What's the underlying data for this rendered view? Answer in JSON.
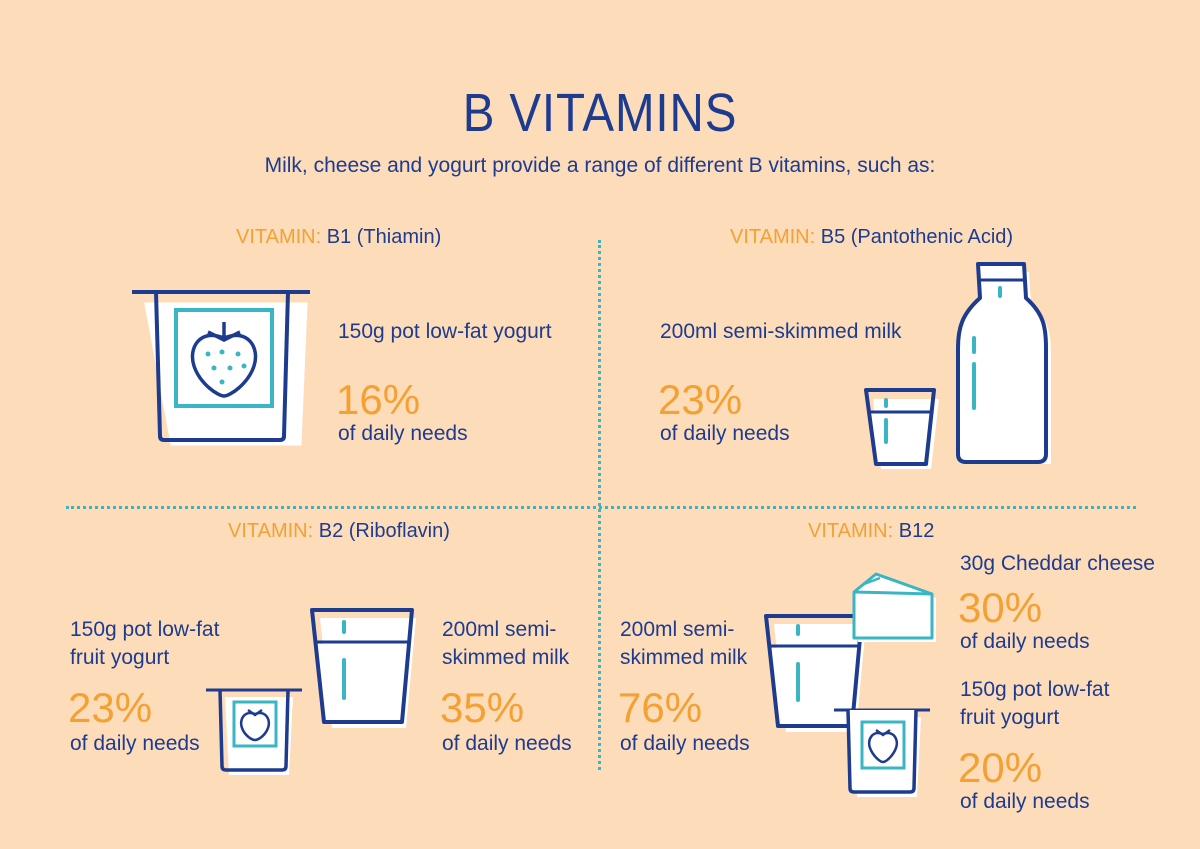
{
  "title": "B VITAMINS",
  "subtitle": "Milk, cheese and yogurt provide a range of different B vitamins, such as:",
  "prefix": "VITAMIN:",
  "b1": {
    "name": "B1 (Thiamin)",
    "items": [
      {
        "desc": "150g pot low-fat yogurt",
        "pct": "16%",
        "needs": "of daily needs"
      }
    ]
  },
  "b5": {
    "name": "B5 (Pantothenic Acid)",
    "items": [
      {
        "desc": "200ml semi-skimmed milk",
        "pct": "23%",
        "needs": "of daily needs"
      }
    ]
  },
  "b2": {
    "name": "B2 (Riboflavin)",
    "items": [
      {
        "desc1": "150g pot low-fat",
        "desc2": "fruit yogurt",
        "pct": "23%",
        "needs": "of daily needs"
      },
      {
        "desc1": "200ml semi-",
        "desc2": "skimmed milk",
        "pct": "35%",
        "needs": "of daily needs"
      }
    ]
  },
  "b12": {
    "name": "B12",
    "items": [
      {
        "desc1": "200ml semi-",
        "desc2": "skimmed milk",
        "pct": "76%",
        "needs": "of daily needs"
      },
      {
        "desc1": "30g Cheddar cheese",
        "pct": "30%",
        "needs": "of daily needs"
      },
      {
        "desc1": "150g pot low-fat",
        "desc2": "fruit yogurt",
        "pct": "20%",
        "needs": "of daily needs"
      }
    ]
  },
  "colors": {
    "background": "#fddcb9",
    "navy": "#1d3b8f",
    "orange": "#f5a033",
    "teal": "#3ab5c4"
  }
}
